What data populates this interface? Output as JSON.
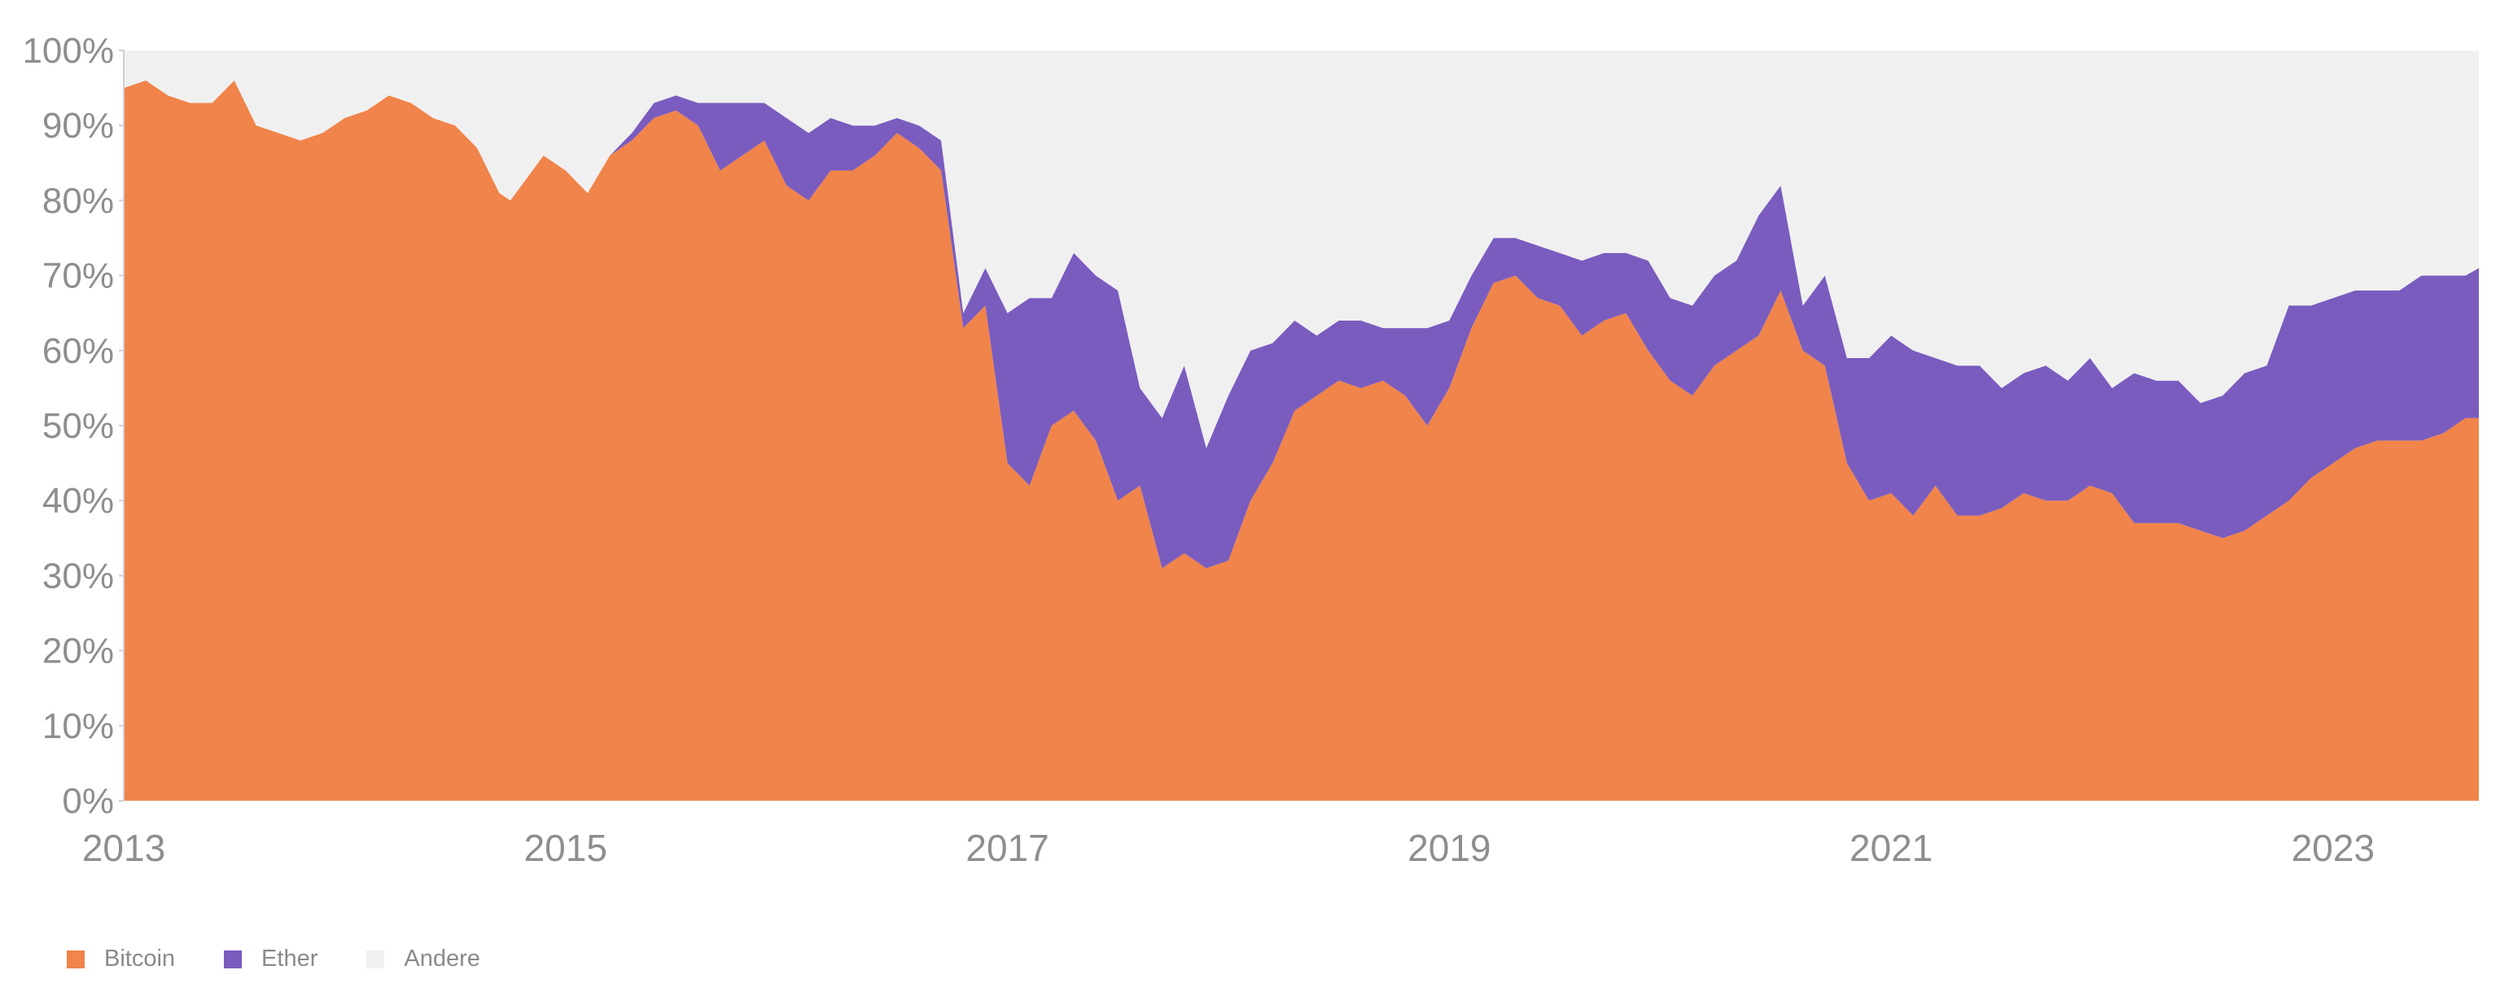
{
  "chart_data": {
    "type": "area",
    "stacked": true,
    "percent_scale": true,
    "x": [
      2013.0,
      2013.1,
      2013.2,
      2013.3,
      2013.4,
      2013.5,
      2013.6,
      2013.7,
      2013.8,
      2013.9,
      2014.0,
      2014.1,
      2014.2,
      2014.3,
      2014.4,
      2014.5,
      2014.6,
      2014.7,
      2014.75,
      2014.8,
      2014.9,
      2015.0,
      2015.1,
      2015.2,
      2015.3,
      2015.4,
      2015.5,
      2015.6,
      2015.7,
      2015.8,
      2015.9,
      2016.0,
      2016.1,
      2016.2,
      2016.3,
      2016.4,
      2016.5,
      2016.6,
      2016.7,
      2016.8,
      2016.9,
      2017.0,
      2017.1,
      2017.2,
      2017.3,
      2017.4,
      2017.5,
      2017.6,
      2017.7,
      2017.8,
      2017.9,
      2018.0,
      2018.1,
      2018.2,
      2018.3,
      2018.4,
      2018.5,
      2018.6,
      2018.7,
      2018.8,
      2018.9,
      2019.0,
      2019.1,
      2019.2,
      2019.3,
      2019.4,
      2019.5,
      2019.6,
      2019.7,
      2019.8,
      2019.9,
      2020.0,
      2020.1,
      2020.2,
      2020.3,
      2020.4,
      2020.5,
      2020.6,
      2020.7,
      2020.8,
      2020.9,
      2021.0,
      2021.1,
      2021.2,
      2021.3,
      2021.4,
      2021.5,
      2021.6,
      2021.7,
      2021.8,
      2021.9,
      2022.0,
      2022.1,
      2022.2,
      2022.3,
      2022.4,
      2022.5,
      2022.6,
      2022.7,
      2022.8,
      2022.9,
      2023.0,
      2023.1,
      2023.2,
      2023.3,
      2023.4,
      2023.5,
      2023.6,
      2023.66
    ],
    "series": [
      {
        "name": "Bitcoin",
        "color": "#f0844a",
        "values": [
          95,
          96,
          94,
          93,
          93,
          96,
          90,
          89,
          88,
          89,
          91,
          92,
          94,
          93,
          91,
          90,
          87,
          81,
          80,
          82,
          86,
          84,
          81,
          86,
          88,
          91,
          92,
          90,
          84,
          86,
          88,
          82,
          80,
          84,
          84,
          86,
          89,
          87,
          84,
          63,
          66,
          45,
          42,
          50,
          52,
          48,
          40,
          42,
          31,
          33,
          31,
          32,
          40,
          45,
          52,
          54,
          56,
          55,
          56,
          54,
          50,
          55,
          63,
          69,
          70,
          67,
          66,
          62,
          64,
          65,
          60,
          56,
          54,
          58,
          60,
          62,
          68,
          60,
          58,
          45,
          40,
          41,
          38,
          42,
          38,
          38,
          39,
          41,
          40,
          40,
          42,
          41,
          37,
          37,
          37,
          36,
          35,
          36,
          38,
          40,
          43,
          45,
          47,
          48,
          48,
          48,
          49,
          51,
          51
        ]
      },
      {
        "name": "Ether",
        "color": "#7a5cbf",
        "values": [
          0,
          0,
          0,
          0,
          0,
          0,
          0,
          0,
          0,
          0,
          0,
          0,
          0,
          0,
          0,
          0,
          0,
          0,
          0,
          0,
          0,
          0,
          0,
          0,
          1,
          2,
          2,
          3,
          9,
          7,
          5,
          9,
          9,
          7,
          6,
          4,
          2,
          3,
          4,
          2,
          5,
          20,
          25,
          17,
          21,
          22,
          28,
          13,
          20,
          25,
          16,
          22,
          20,
          16,
          12,
          8,
          8,
          9,
          7,
          9,
          13,
          9,
          7,
          6,
          5,
          7,
          7,
          10,
          9,
          8,
          12,
          11,
          12,
          12,
          12,
          16,
          14,
          6,
          12,
          14,
          19,
          21,
          22,
          17,
          20,
          20,
          16,
          16,
          18,
          16,
          17,
          14,
          20,
          19,
          19,
          17,
          19,
          21,
          20,
          26,
          23,
          22,
          21,
          20,
          20,
          22,
          21,
          19,
          20
        ]
      },
      {
        "name": "Andere",
        "color": "#f0f0f0",
        "values": [
          5,
          4,
          6,
          7,
          7,
          4,
          10,
          11,
          12,
          11,
          9,
          8,
          6,
          7,
          9,
          10,
          13,
          19,
          20,
          18,
          14,
          16,
          19,
          14,
          11,
          7,
          6,
          7,
          7,
          7,
          7,
          9,
          11,
          9,
          10,
          10,
          9,
          10,
          12,
          35,
          29,
          35,
          33,
          33,
          27,
          30,
          32,
          45,
          49,
          42,
          53,
          46,
          40,
          39,
          36,
          38,
          36,
          36,
          37,
          37,
          37,
          36,
          30,
          25,
          25,
          26,
          27,
          28,
          27,
          27,
          28,
          33,
          34,
          30,
          28,
          22,
          18,
          34,
          30,
          41,
          41,
          38,
          40,
          41,
          42,
          42,
          45,
          43,
          42,
          44,
          41,
          45,
          43,
          44,
          44,
          47,
          46,
          43,
          42,
          34,
          34,
          33,
          32,
          32,
          32,
          30,
          30,
          30,
          29
        ]
      }
    ],
    "y_ticks": [
      "0%",
      "10%",
      "20%",
      "30%",
      "40%",
      "50%",
      "60%",
      "70%",
      "80%",
      "90%",
      "100%"
    ],
    "x_ticks": [
      {
        "value": 2013,
        "label": "2013"
      },
      {
        "value": 2015,
        "label": "2015"
      },
      {
        "value": 2017,
        "label": "2017"
      },
      {
        "value": 2019,
        "label": "2019"
      },
      {
        "value": 2021,
        "label": "2021"
      },
      {
        "value": 2023,
        "label": "2023"
      }
    ],
    "xlim": [
      2013.0,
      2023.66
    ],
    "ylim": [
      0,
      100
    ],
    "grid": false,
    "legend_position": "bottom-left",
    "title": "",
    "xlabel": "",
    "ylabel": ""
  },
  "legend": {
    "items": [
      {
        "label": "Bitcoin",
        "color": "#f0844a"
      },
      {
        "label": "Ether",
        "color": "#7a5cbf"
      },
      {
        "label": "Andere",
        "color": "#f0f0f0"
      }
    ]
  }
}
